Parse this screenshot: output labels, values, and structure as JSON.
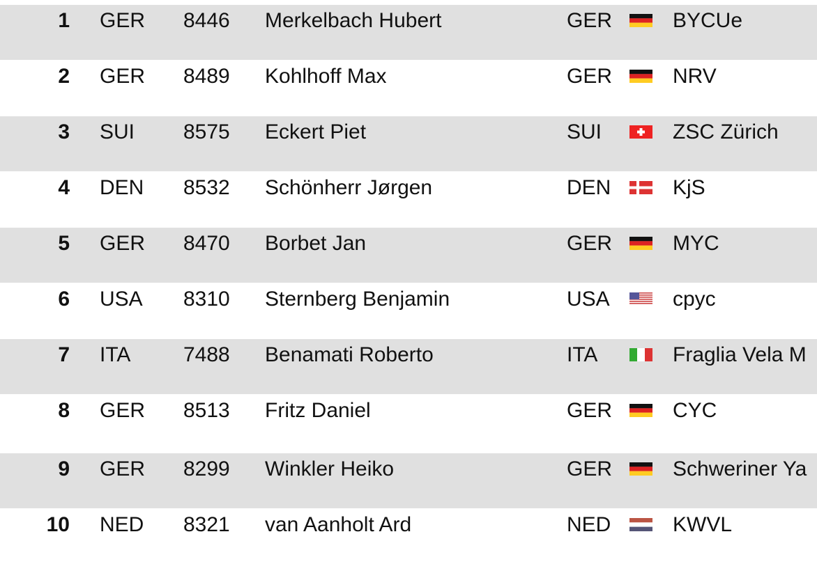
{
  "rows": [
    {
      "rank": "1",
      "nation": "GER",
      "sail_number": "8446",
      "name": "Merkelbach Hubert",
      "club_nation": "GER",
      "flag": "germany-flag",
      "club": "BYCUe"
    },
    {
      "rank": "2",
      "nation": "GER",
      "sail_number": "8489",
      "name": "Kohlhoff Max",
      "club_nation": "GER",
      "flag": "germany-flag",
      "club": "NRV"
    },
    {
      "rank": "3",
      "nation": "SUI",
      "sail_number": "8575",
      "name": "Eckert Piet",
      "club_nation": "SUI",
      "flag": "switzerland-flag",
      "club": "ZSC Zürich"
    },
    {
      "rank": "4",
      "nation": "DEN",
      "sail_number": "8532",
      "name": "Schönherr Jørgen",
      "club_nation": "DEN",
      "flag": "denmark-flag",
      "club": "KjS"
    },
    {
      "rank": "5",
      "nation": "GER",
      "sail_number": "8470",
      "name": "Borbet Jan",
      "club_nation": "GER",
      "flag": "germany-flag",
      "club": "MYC"
    },
    {
      "rank": "6",
      "nation": "USA",
      "sail_number": "8310",
      "name": "Sternberg Benjamin",
      "club_nation": "USA",
      "flag": "usa-flag",
      "club": "cpyc"
    },
    {
      "rank": "7",
      "nation": "ITA",
      "sail_number": "7488",
      "name": "Benamati Roberto",
      "club_nation": "ITA",
      "flag": "italy-flag",
      "club": "Fraglia Vela M"
    },
    {
      "rank": "8",
      "nation": "GER",
      "sail_number": "8513",
      "name": "Fritz Daniel",
      "club_nation": "GER",
      "flag": "germany-flag",
      "club": "CYC"
    },
    {
      "rank": "9",
      "nation": "GER",
      "sail_number": "8299",
      "name": "Winkler Heiko",
      "club_nation": "GER",
      "flag": "germany-flag",
      "club": "Schweriner Ya"
    },
    {
      "rank": "10",
      "nation": "NED",
      "sail_number": "8321",
      "name": "van Aanholt Ard",
      "club_nation": "NED",
      "flag": "netherlands-flag",
      "club": "KWVL"
    }
  ],
  "colors": {
    "row_alt": "#e0e0e0"
  }
}
